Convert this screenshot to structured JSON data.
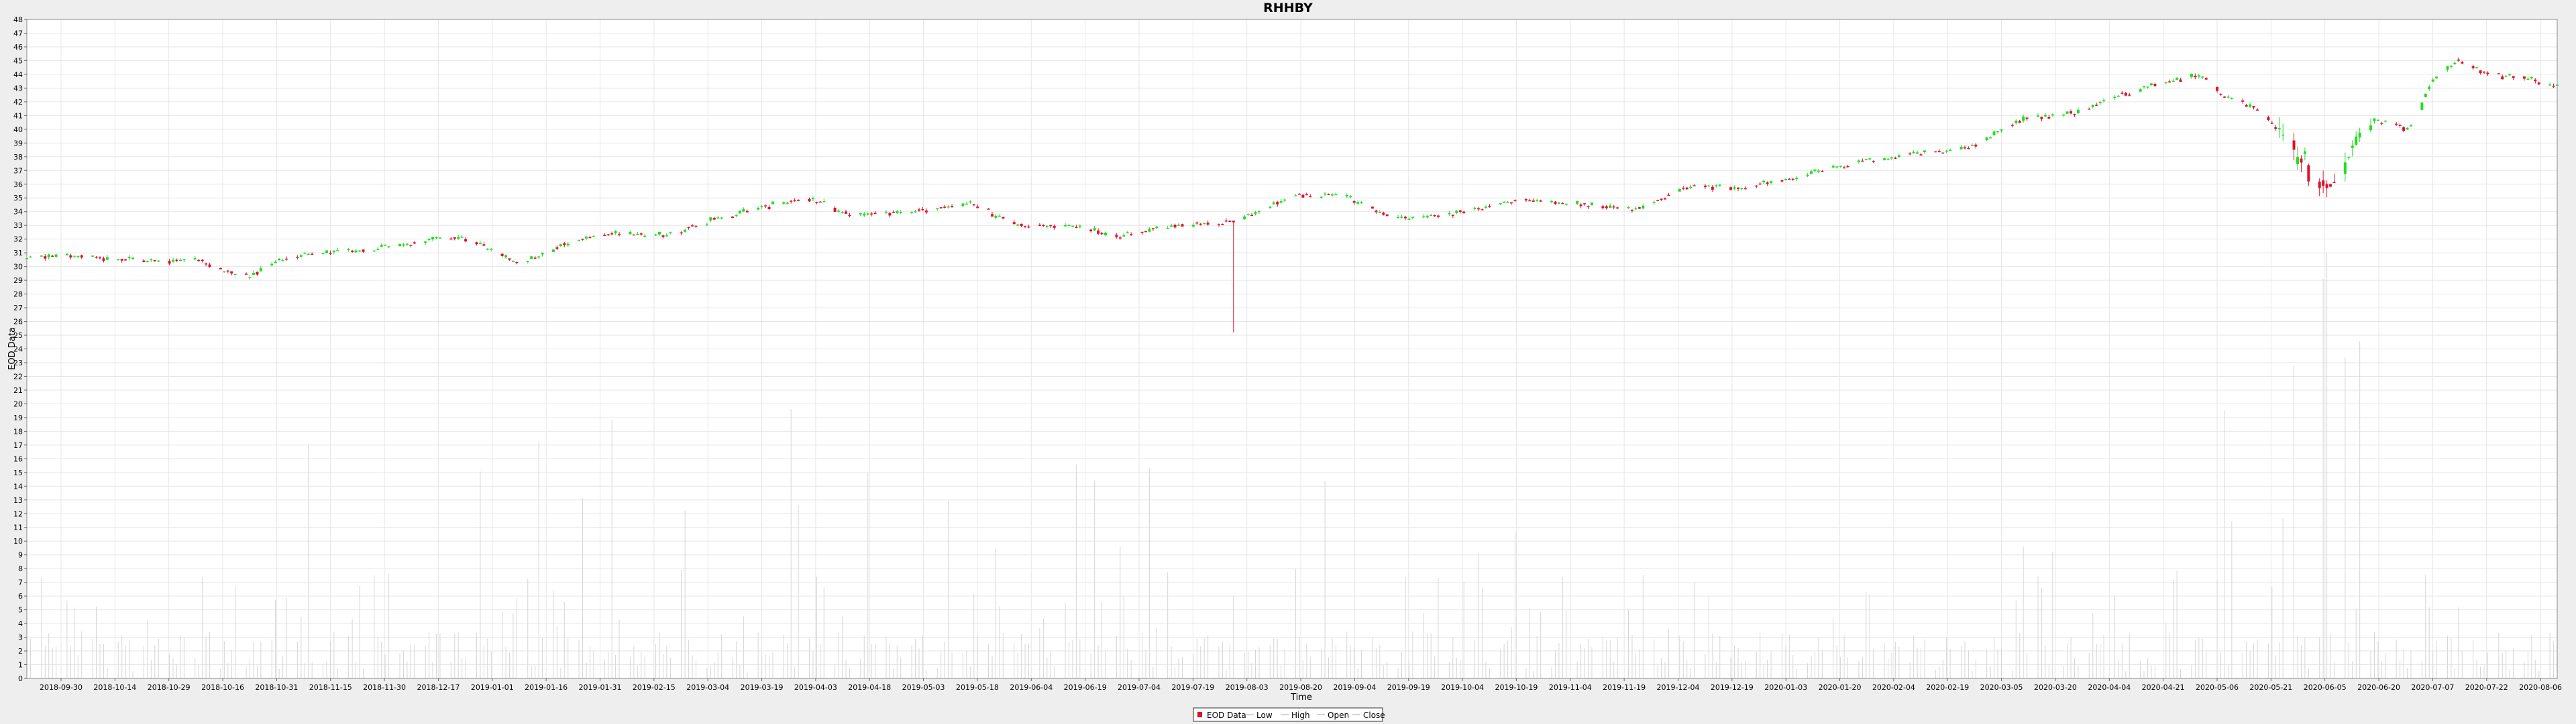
{
  "chart_data": {
    "type": "candlestick",
    "title": "RHHBY",
    "xlabel": "Time",
    "ylabel": "EOD Data",
    "ylim": [
      0,
      48
    ],
    "yticks": [
      0,
      1,
      2,
      3,
      4,
      5,
      6,
      7,
      8,
      9,
      10,
      11,
      12,
      13,
      14,
      15,
      16,
      17,
      18,
      19,
      20,
      21,
      22,
      23,
      24,
      25,
      26,
      27,
      28,
      29,
      30,
      31,
      32,
      33,
      34,
      35,
      36,
      37,
      38,
      39,
      40,
      41,
      42,
      43,
      44,
      45,
      46,
      47,
      48
    ],
    "xlim": [
      "2018-09-20",
      "2020-08-12"
    ],
    "xticks": [
      "2018-09-30",
      "2018-10-14",
      "2018-10-29",
      "2018-10-16",
      "2018-10-31",
      "2018-11-15",
      "2018-11-30",
      "2018-12-17",
      "2019-01-01",
      "2019-01-16",
      "2019-01-31",
      "2019-02-15",
      "2019-03-04",
      "2019-03-19",
      "2019-04-03",
      "2019-04-18",
      "2019-05-03",
      "2019-05-18",
      "2019-06-04",
      "2019-06-19",
      "2019-07-04",
      "2019-07-19",
      "2019-08-03",
      "2019-08-20",
      "2019-09-04",
      "2019-09-19",
      "2019-10-04",
      "2019-10-19",
      "2019-11-04",
      "2019-11-19",
      "2019-12-04",
      "2019-12-19",
      "2020-01-03",
      "2020-01-20",
      "2020-02-04",
      "2020-02-19",
      "2020-03-05",
      "2020-03-20",
      "2020-04-04",
      "2020-04-21",
      "2020-05-06",
      "2020-05-21",
      "2020-06-05",
      "2020-06-20",
      "2020-07-07",
      "2020-07-22",
      "2020-08-06"
    ],
    "grid": true,
    "legend_position": "bottom-center",
    "legend": [
      "EOD Data",
      "Low",
      "High",
      "Open",
      "Close"
    ],
    "colors": {
      "up": "#22dd22",
      "down": "#e0102a",
      "volume": "#d6d6d6",
      "grid": "#e6e6e6",
      "background": "#ffffff"
    },
    "trend_keypoints": [
      {
        "x": "2018-09-20",
        "y": 30.6
      },
      {
        "x": "2018-10-01",
        "y": 30.9
      },
      {
        "x": "2018-10-14",
        "y": 30.6
      },
      {
        "x": "2018-10-29",
        "y": 30.4
      },
      {
        "x": "2018-11-05",
        "y": 30.7
      },
      {
        "x": "2018-11-12",
        "y": 29.8
      },
      {
        "x": "2018-11-20",
        "y": 29.3
      },
      {
        "x": "2018-12-01",
        "y": 30.8
      },
      {
        "x": "2018-12-20",
        "y": 31.2
      },
      {
        "x": "2019-01-02",
        "y": 31.6
      },
      {
        "x": "2019-01-12",
        "y": 32.2
      },
      {
        "x": "2019-01-20",
        "y": 31.8
      },
      {
        "x": "2019-02-02",
        "y": 30.2
      },
      {
        "x": "2019-02-16",
        "y": 31.8
      },
      {
        "x": "2019-02-28",
        "y": 32.4
      },
      {
        "x": "2019-03-14",
        "y": 32.3
      },
      {
        "x": "2019-03-28",
        "y": 33.5
      },
      {
        "x": "2019-04-14",
        "y": 34.6
      },
      {
        "x": "2019-04-25",
        "y": 34.8
      },
      {
        "x": "2019-05-03",
        "y": 33.7
      },
      {
        "x": "2019-05-19",
        "y": 34.0
      },
      {
        "x": "2019-06-05",
        "y": 34.6
      },
      {
        "x": "2019-06-18",
        "y": 33.0
      },
      {
        "x": "2019-07-02",
        "y": 33.0
      },
      {
        "x": "2019-07-16",
        "y": 32.2
      },
      {
        "x": "2019-08-01",
        "y": 33.0
      },
      {
        "x": "2019-08-17",
        "y": 33.4
      },
      {
        "x": "2019-09-02",
        "y": 35.2
      },
      {
        "x": "2019-09-15",
        "y": 35.1
      },
      {
        "x": "2019-09-30",
        "y": 33.5
      },
      {
        "x": "2019-10-15",
        "y": 33.9
      },
      {
        "x": "2019-11-01",
        "y": 34.8
      },
      {
        "x": "2019-11-18",
        "y": 34.6
      },
      {
        "x": "2019-12-03",
        "y": 34.1
      },
      {
        "x": "2019-12-18",
        "y": 35.8
      },
      {
        "x": "2020-01-03",
        "y": 35.8
      },
      {
        "x": "2020-01-18",
        "y": 36.6
      },
      {
        "x": "2020-02-02",
        "y": 37.6
      },
      {
        "x": "2020-02-18",
        "y": 38.2
      },
      {
        "x": "2020-03-02",
        "y": 38.5
      },
      {
        "x": "2020-03-10",
        "y": 39.5
      },
      {
        "x": "2020-03-20",
        "y": 40.8
      },
      {
        "x": "2020-04-04",
        "y": 41.2
      },
      {
        "x": "2020-04-14",
        "y": 42.5
      },
      {
        "x": "2020-04-26",
        "y": 43.4
      },
      {
        "x": "2020-05-06",
        "y": 44.0
      },
      {
        "x": "2020-05-14",
        "y": 42.2
      },
      {
        "x": "2020-05-22",
        "y": 41.5
      },
      {
        "x": "2020-06-01",
        "y": 38.5
      },
      {
        "x": "2020-06-08",
        "y": 36.0
      },
      {
        "x": "2020-06-14",
        "y": 37.5
      },
      {
        "x": "2020-06-22",
        "y": 40.8
      },
      {
        "x": "2020-07-02",
        "y": 40.0
      },
      {
        "x": "2020-07-09",
        "y": 43.5
      },
      {
        "x": "2020-07-16",
        "y": 45.0
      },
      {
        "x": "2020-07-24",
        "y": 44.0
      },
      {
        "x": "2020-08-01",
        "y": 43.8
      },
      {
        "x": "2020-08-12",
        "y": 43.2
      }
    ]
  }
}
